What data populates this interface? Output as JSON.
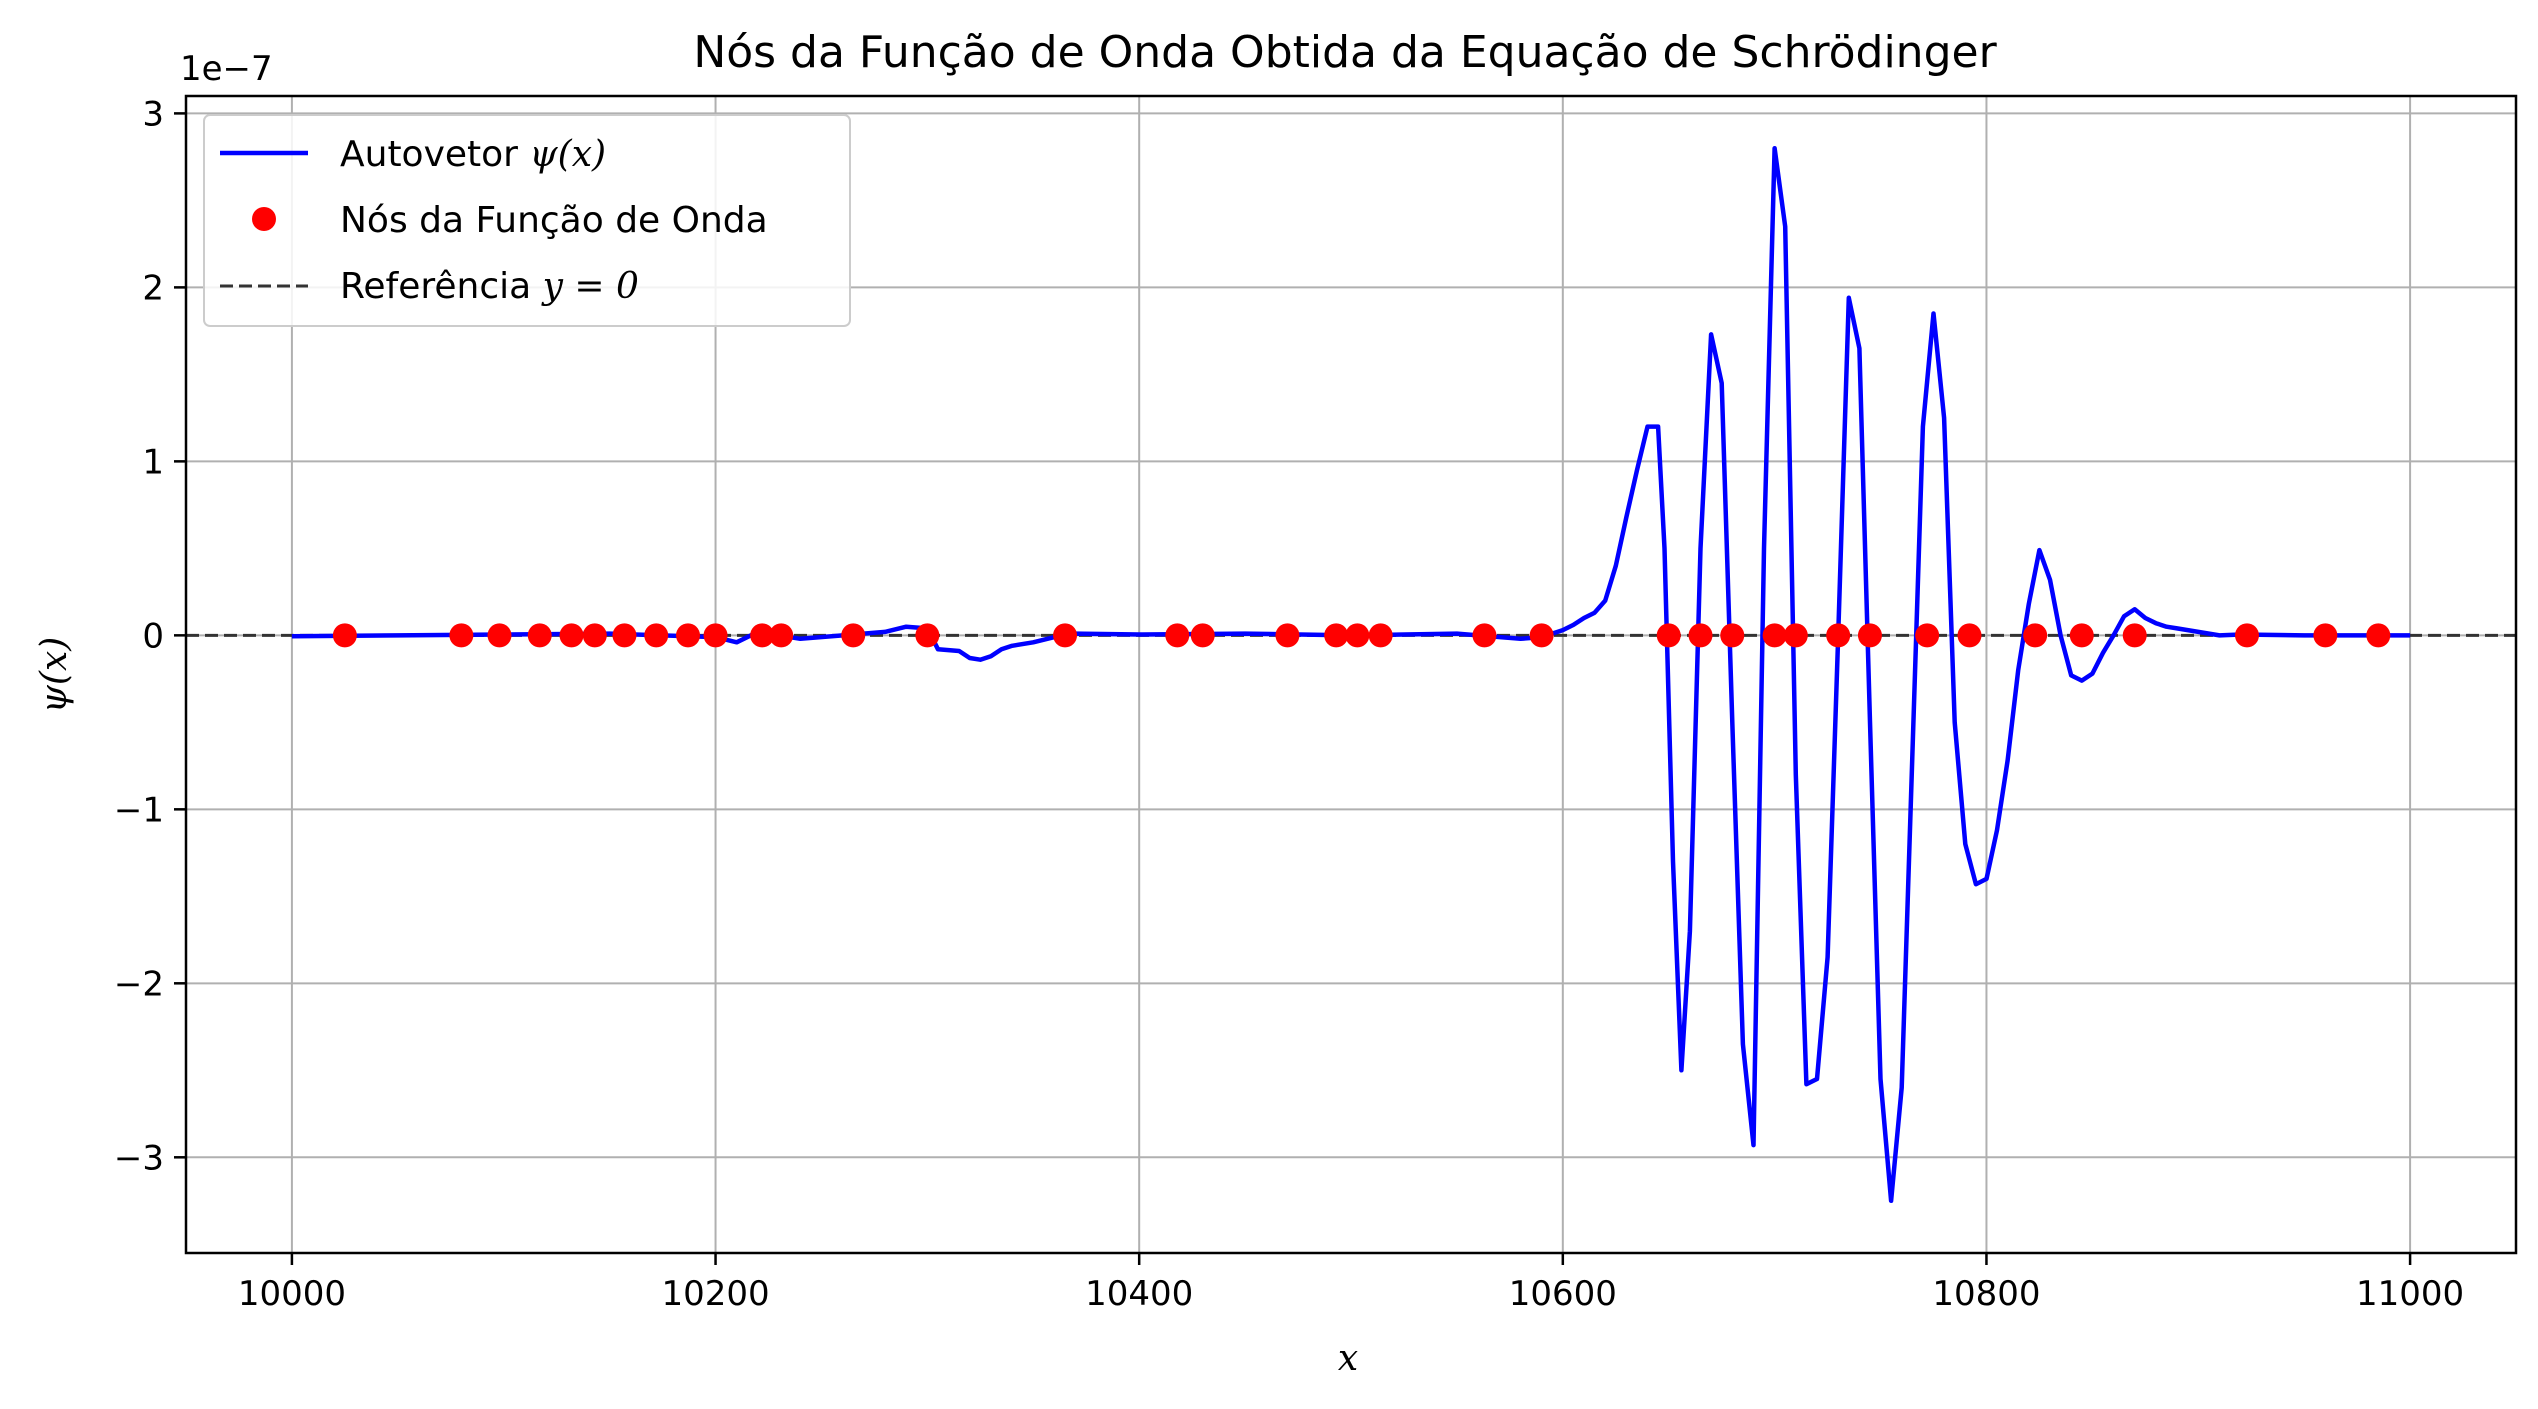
{
  "chart_data": {
    "type": "line",
    "title": "Nós da Função de Onda Obtida da Equação de Schrödinger",
    "xlabel": "x",
    "ylabel": "ψ(x)",
    "y_offset_label": "1e−7",
    "xlim": [
      9950,
      11050
    ],
    "ylim": [
      -3.55,
      3.1
    ],
    "xticks": [
      10000,
      10200,
      10400,
      10600,
      10800,
      11000
    ],
    "yticks": [
      -3,
      -2,
      -1,
      0,
      1,
      2,
      3
    ],
    "ytick_labels": [
      "−3",
      "−2",
      "−1",
      "0",
      "1",
      "2",
      "3"
    ],
    "grid": true,
    "legend_placement": "top-left",
    "legend": {
      "line_prefix": "Autovetor ",
      "line_math": "ψ(x)",
      "nodes_label": "Nós da Função de Onda",
      "ref_prefix": "Referência ",
      "ref_math": "y = 0"
    },
    "colors": {
      "line": "#0000ff",
      "nodes": "#ff0000",
      "reference": "#333333",
      "grid": "#b0b0b0"
    },
    "series": [
      {
        "name": "Autovetor ψ(x)",
        "x": [
          10000,
          10050,
          10100,
          10150,
          10200,
          10210,
          10220,
          10240,
          10260,
          10280,
          10290,
          10300,
          10305,
          10315,
          10320,
          10325,
          10330,
          10335,
          10340,
          10350,
          10360,
          10370,
          10400,
          10450,
          10500,
          10550,
          10580,
          10590,
          10600,
          10605,
          10610,
          10615,
          10620,
          10625,
          10630,
          10635,
          10640,
          10645,
          10648,
          10652,
          10656,
          10660,
          10665,
          10670,
          10675,
          10680,
          10685,
          10690,
          10695,
          10700,
          10705,
          10710,
          10715,
          10720,
          10725,
          10730,
          10735,
          10740,
          10745,
          10750,
          10755,
          10760,
          10765,
          10770,
          10775,
          10780,
          10785,
          10790,
          10795,
          10800,
          10805,
          10810,
          10815,
          10820,
          10825,
          10830,
          10835,
          10840,
          10845,
          10850,
          10855,
          10860,
          10865,
          10870,
          10875,
          10880,
          10885,
          10890,
          10900,
          10910,
          10920,
          10950,
          11000
        ],
        "y": [
          -0.005,
          0.0,
          0.005,
          0.01,
          -0.01,
          -0.04,
          0.02,
          -0.02,
          0.0,
          0.02,
          0.05,
          0.04,
          -0.08,
          -0.09,
          -0.13,
          -0.14,
          -0.12,
          -0.08,
          -0.06,
          -0.04,
          -0.01,
          0.01,
          0.005,
          0.01,
          0.0,
          0.01,
          -0.02,
          -0.01,
          0.03,
          0.06,
          0.1,
          0.13,
          0.2,
          0.4,
          0.68,
          0.95,
          1.2,
          1.2,
          0.5,
          -1.3,
          -2.5,
          -1.7,
          0.5,
          1.73,
          1.45,
          -0.5,
          -2.35,
          -2.93,
          0.5,
          2.8,
          2.35,
          -0.8,
          -2.58,
          -2.55,
          -1.85,
          0.0,
          1.94,
          1.65,
          -0.5,
          -2.55,
          -3.25,
          -2.6,
          -0.7,
          1.2,
          1.85,
          1.25,
          -0.5,
          -1.2,
          -1.43,
          -1.4,
          -1.12,
          -0.72,
          -0.2,
          0.18,
          0.49,
          0.32,
          0.0,
          -0.23,
          -0.26,
          -0.22,
          -0.1,
          0.0,
          0.11,
          0.15,
          0.1,
          0.07,
          0.05,
          0.04,
          0.02,
          0.0,
          0.005,
          0.0,
          0.0
        ]
      },
      {
        "name": "Nós da Função de Onda",
        "x": [
          10025,
          10080,
          10098,
          10117,
          10132,
          10143,
          10157,
          10172,
          10187,
          10200,
          10222,
          10231,
          10265,
          10300,
          10365,
          10418,
          10430,
          10470,
          10493,
          10503,
          10514,
          10563,
          10590,
          10650,
          10665,
          10680,
          10700,
          10710,
          10730,
          10745,
          10772,
          10792,
          10823,
          10845,
          10870,
          10923,
          10960,
          10985
        ],
        "y": [
          0,
          0,
          0,
          0,
          0,
          0,
          0,
          0,
          0,
          0,
          0,
          0,
          0,
          0,
          0,
          0,
          0,
          0,
          0,
          0,
          0,
          0,
          0,
          0,
          0,
          0,
          0,
          0,
          0,
          0,
          0,
          0,
          0,
          0,
          0,
          0,
          0,
          0
        ]
      }
    ]
  }
}
